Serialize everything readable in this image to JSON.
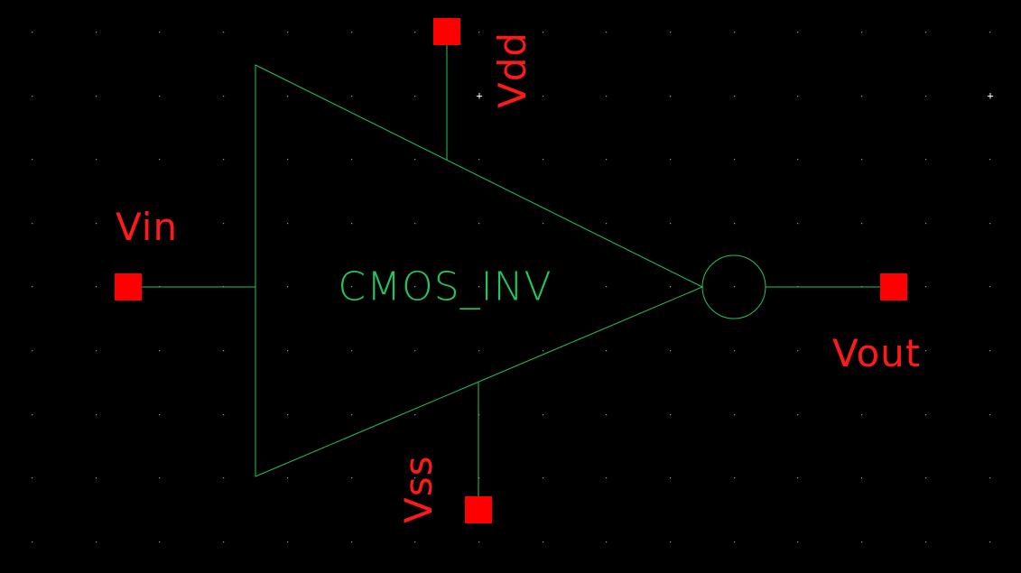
{
  "colors": {
    "background": "#000000",
    "wire": "#22c55e",
    "pin": "#ff0000",
    "grid_dot": "#9a9a9a",
    "cell_label": "#22c55e",
    "pin_label": "#ff1a1a"
  },
  "symbol": {
    "name": "CMOS_INV",
    "shape": "inverter-triangle-with-bubble"
  },
  "pins": {
    "vin": {
      "label": "Vin",
      "icon": "pin-square"
    },
    "vout": {
      "label": "Vout",
      "icon": "pin-square"
    },
    "vdd": {
      "label": "Vdd",
      "icon": "pin-square"
    },
    "vss": {
      "label": "Vss",
      "icon": "pin-square"
    }
  },
  "markers": {
    "origin_cross": "+",
    "corner_cross": "+"
  }
}
